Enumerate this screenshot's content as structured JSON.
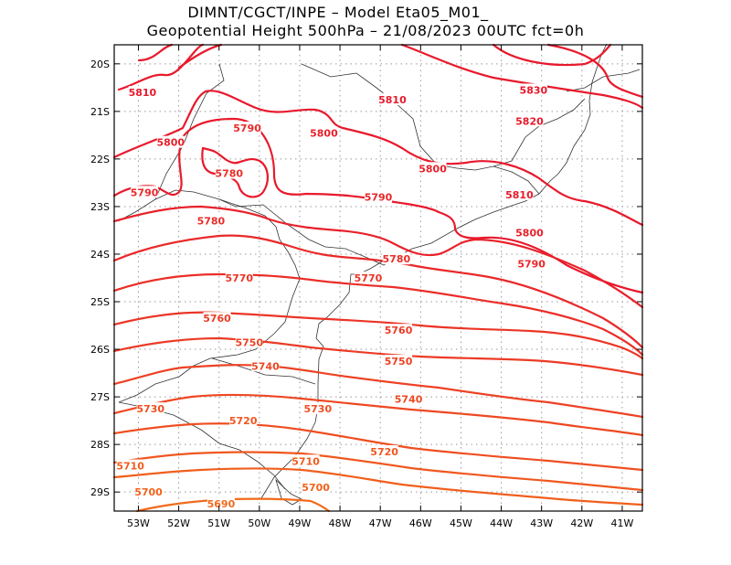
{
  "header": {
    "line1": "DIMNT/CGCT/INPE –  Model Eta05_M01_",
    "line2": "Geopotential Height 500hPa –  21/08/2023 00UTC fct=0h"
  },
  "axes": {
    "lat_labels": [
      "20S",
      "21S",
      "22S",
      "23S",
      "24S",
      "25S",
      "26S",
      "27S",
      "28S",
      "29S"
    ],
    "lon_labels": [
      "53W",
      "52W",
      "51W",
      "50W",
      "49W",
      "48W",
      "47W",
      "46W",
      "45W",
      "44W",
      "43W",
      "42W",
      "41W"
    ],
    "lon_range": [
      -53.6,
      -40.5
    ],
    "lat_range": [
      -29.4,
      -19.6
    ]
  },
  "contours": {
    "variable": "Geopotential Height 500hPa",
    "color_high": "#e8192c",
    "color_low": "#f26a1b",
    "labels": [
      {
        "value": "5810",
        "lon": -52.9,
        "lat": -20.6
      },
      {
        "value": "5810",
        "lon": -46.7,
        "lat": -20.75
      },
      {
        "value": "5830",
        "lon": -43.2,
        "lat": -20.55
      },
      {
        "value": "5820",
        "lon": -43.3,
        "lat": -21.2
      },
      {
        "value": "5790",
        "lon": -50.3,
        "lat": -21.35
      },
      {
        "value": "5800",
        "lon": -48.4,
        "lat": -21.45
      },
      {
        "value": "5800",
        "lon": -52.2,
        "lat": -21.65
      },
      {
        "value": "5780",
        "lon": -50.75,
        "lat": -22.3
      },
      {
        "value": "5800",
        "lon": -45.7,
        "lat": -22.2
      },
      {
        "value": "5790",
        "lon": -52.85,
        "lat": -22.7
      },
      {
        "value": "5790",
        "lon": -47.05,
        "lat": -22.8
      },
      {
        "value": "5810",
        "lon": -43.55,
        "lat": -22.75
      },
      {
        "value": "5780",
        "lon": -51.2,
        "lat": -23.3
      },
      {
        "value": "5800",
        "lon": -43.3,
        "lat": -23.55
      },
      {
        "value": "5780",
        "lon": -46.6,
        "lat": -24.1
      },
      {
        "value": "5790",
        "lon": -43.25,
        "lat": -24.2
      },
      {
        "value": "5770",
        "lon": -50.5,
        "lat": -24.5
      },
      {
        "value": "5770",
        "lon": -47.3,
        "lat": -24.5
      },
      {
        "value": "5760",
        "lon": -51.05,
        "lat": -25.35
      },
      {
        "value": "5760",
        "lon": -46.55,
        "lat": -25.6
      },
      {
        "value": "5750",
        "lon": -50.25,
        "lat": -25.85
      },
      {
        "value": "5750",
        "lon": -46.55,
        "lat": -26.25
      },
      {
        "value": "5740",
        "lon": -49.85,
        "lat": -26.35
      },
      {
        "value": "5740",
        "lon": -46.3,
        "lat": -27.05
      },
      {
        "value": "5730",
        "lon": -52.7,
        "lat": -27.25
      },
      {
        "value": "5730",
        "lon": -48.55,
        "lat": -27.25
      },
      {
        "value": "5720",
        "lon": -50.4,
        "lat": -27.5
      },
      {
        "value": "5720",
        "lon": -46.9,
        "lat": -28.15
      },
      {
        "value": "5710",
        "lon": -53.2,
        "lat": -28.45
      },
      {
        "value": "5710",
        "lon": -48.85,
        "lat": -28.35
      },
      {
        "value": "5700",
        "lon": -52.75,
        "lat": -29.0
      },
      {
        "value": "5700",
        "lon": -48.6,
        "lat": -28.9
      },
      {
        "value": "5690",
        "lon": -50.95,
        "lat": -29.25
      }
    ]
  }
}
